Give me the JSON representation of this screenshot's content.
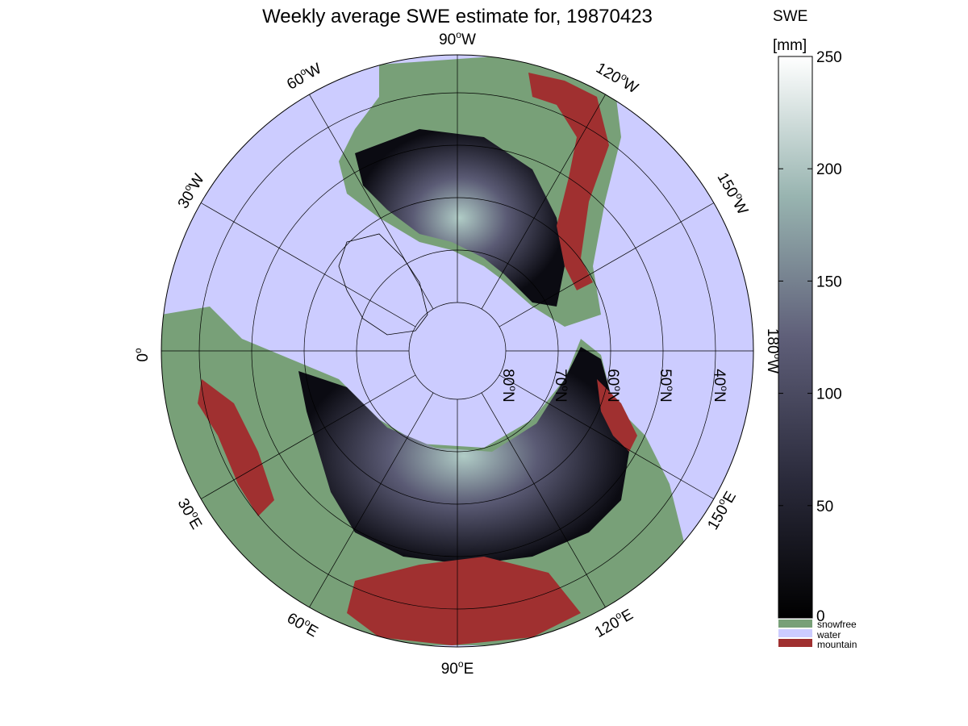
{
  "title": "Weekly average SWE estimate for, 19870423",
  "colorbar": {
    "label_line1": "SWE",
    "label_line2": "[mm]",
    "ticks": [
      "0",
      "50",
      "100",
      "150",
      "200",
      "250"
    ],
    "range": [
      0,
      250
    ],
    "categories": [
      {
        "label": "snowfree",
        "color": "#78a078"
      },
      {
        "label": "water",
        "color": "#ccccff"
      },
      {
        "label": "mountain",
        "color": "#a03030"
      }
    ]
  },
  "map": {
    "projection": "north-polar stereographic",
    "longitude_labels": [
      {
        "text": "90",
        "suffix": "W"
      },
      {
        "text": "120",
        "suffix": "W"
      },
      {
        "text": "150",
        "suffix": "W"
      },
      {
        "text": "180",
        "suffix": "W"
      },
      {
        "text": "150",
        "suffix": "E"
      },
      {
        "text": "120",
        "suffix": "E"
      },
      {
        "text": "90",
        "suffix": "E"
      },
      {
        "text": "60",
        "suffix": "E"
      },
      {
        "text": "30",
        "suffix": "E"
      },
      {
        "text": "0",
        "suffix": ""
      },
      {
        "text": "30",
        "suffix": "W"
      },
      {
        "text": "60",
        "suffix": "W"
      }
    ],
    "latitude_labels": [
      {
        "text": "80",
        "suffix": "N"
      },
      {
        "text": "70",
        "suffix": "N"
      },
      {
        "text": "60",
        "suffix": "N"
      },
      {
        "text": "50",
        "suffix": "N"
      },
      {
        "text": "40",
        "suffix": "N"
      }
    ],
    "colors": {
      "water": "#ccccff",
      "snowfree": "#78a078",
      "mountain": "#a03030",
      "snow_low": "#0a0a10",
      "snow_mid": "#4e4e66",
      "snow_high": "#a8c8c0"
    }
  }
}
